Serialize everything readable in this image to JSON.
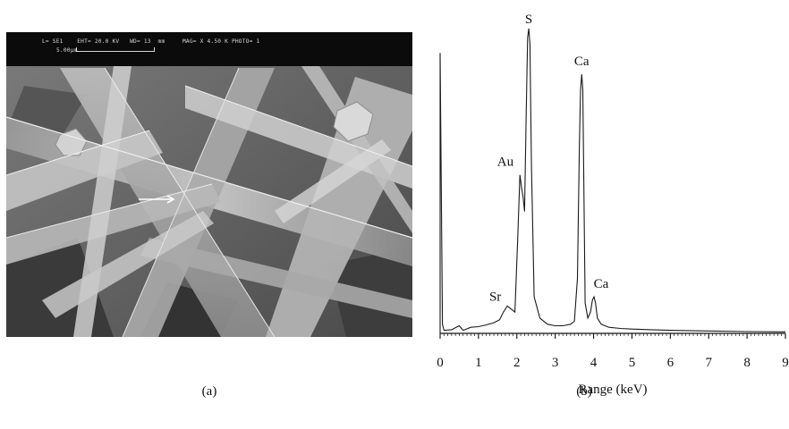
{
  "panel_a": {
    "caption": "(a)",
    "header_line1": "L= SE1    EHT= 20.0 KV   WD= 13  mm     MAG= X 4.50 K PHOTO= 1",
    "scale_bar_label": "5.00μm"
  },
  "panel_b": {
    "caption": "(b)"
  },
  "chart_data": {
    "type": "line",
    "title": "",
    "xlabel": "Range (keV)",
    "ylabel": "",
    "xlim": [
      0,
      9
    ],
    "ylim": [
      0,
      100
    ],
    "xticks": [
      "0",
      "1",
      "2",
      "3",
      "4",
      "5",
      "6",
      "7",
      "8",
      "9"
    ],
    "grid": false,
    "peaks": [
      {
        "label": "S",
        "x": 2.31,
        "y": 100
      },
      {
        "label": "Ca",
        "x": 3.69,
        "y": 85
      },
      {
        "label": "Au",
        "x": 2.12,
        "y": 52
      },
      {
        "label": "Sr",
        "x": 1.81,
        "y": 9
      },
      {
        "label": "Ca",
        "x": 4.01,
        "y": 12
      }
    ],
    "series": [
      {
        "x": [
          0.0,
          0.06,
          0.1,
          0.3,
          0.5,
          0.6,
          0.8,
          1.0,
          1.2,
          1.4,
          1.55,
          1.65,
          1.75,
          1.85,
          1.95,
          2.02,
          2.08,
          2.12,
          2.16,
          2.2,
          2.24,
          2.28,
          2.31,
          2.34,
          2.38,
          2.45,
          2.6,
          2.8,
          3.0,
          3.2,
          3.4,
          3.5,
          3.58,
          3.63,
          3.66,
          3.69,
          3.72,
          3.75,
          3.78,
          3.85,
          3.92,
          3.97,
          4.01,
          4.05,
          4.1,
          4.2,
          4.4,
          4.7,
          5.0,
          5.5,
          6.0,
          7.0,
          8.0,
          9.0
        ],
        "values": [
          92,
          3,
          1,
          1.2,
          2.5,
          1,
          2,
          2.2,
          2.8,
          3.5,
          4.5,
          7,
          9,
          8,
          7,
          30,
          52,
          48,
          45,
          40,
          70,
          97,
          100,
          95,
          55,
          12,
          5,
          3,
          2.5,
          2.5,
          3,
          4,
          18,
          62,
          80,
          85,
          80,
          45,
          10,
          5,
          7,
          11,
          12,
          10,
          5,
          3,
          2,
          1.6,
          1.4,
          1.2,
          1.0,
          0.8,
          0.6,
          0.5
        ]
      }
    ]
  }
}
